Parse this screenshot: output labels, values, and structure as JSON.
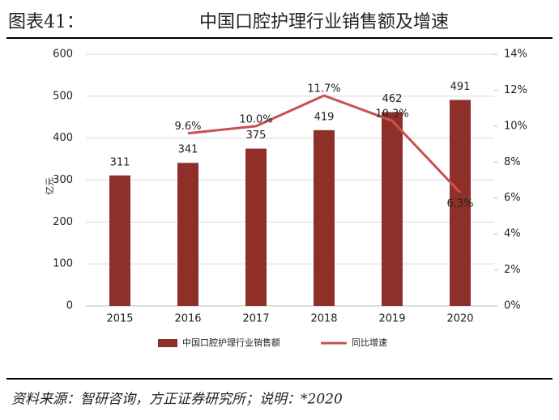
{
  "chart_data": {
    "type": "bar",
    "title_prefix": "图表41：",
    "title": "中国口腔护理行业销售额及增速",
    "ylabel": "亿元",
    "categories": [
      "2015",
      "2016",
      "2017",
      "2018",
      "2019",
      "2020"
    ],
    "series": [
      {
        "name": "中国口腔护理行业销售额",
        "type": "bar",
        "color": "#8e2f2a",
        "values": [
          311,
          341,
          375,
          419,
          462,
          491
        ]
      },
      {
        "name": "同比增速",
        "type": "line",
        "axis": "y2",
        "color": "#c9524f",
        "values": [
          null,
          9.6,
          10.0,
          11.7,
          10.3,
          6.3
        ],
        "value_labels": [
          null,
          "9.6%",
          "10.0%",
          "11.7%",
          "10.3%",
          "6.3%"
        ]
      }
    ],
    "ylim": [
      0,
      600
    ],
    "yticks": [
      0,
      100,
      200,
      300,
      400,
      500,
      600
    ],
    "y2lim": [
      0,
      14
    ],
    "y2ticks": [
      {
        "value": 0,
        "label": "0%"
      },
      {
        "value": 2,
        "label": "2%"
      },
      {
        "value": 4,
        "label": "4%"
      },
      {
        "value": 6,
        "label": "6%"
      },
      {
        "value": 8,
        "label": "8%"
      },
      {
        "value": 10,
        "label": "10%"
      },
      {
        "value": 12,
        "label": "12%"
      },
      {
        "value": 14,
        "label": "14%"
      }
    ],
    "grid": true,
    "legend": "bottom",
    "source": "资料来源：智研咨询，方正证券研究所；说明：*2020"
  }
}
